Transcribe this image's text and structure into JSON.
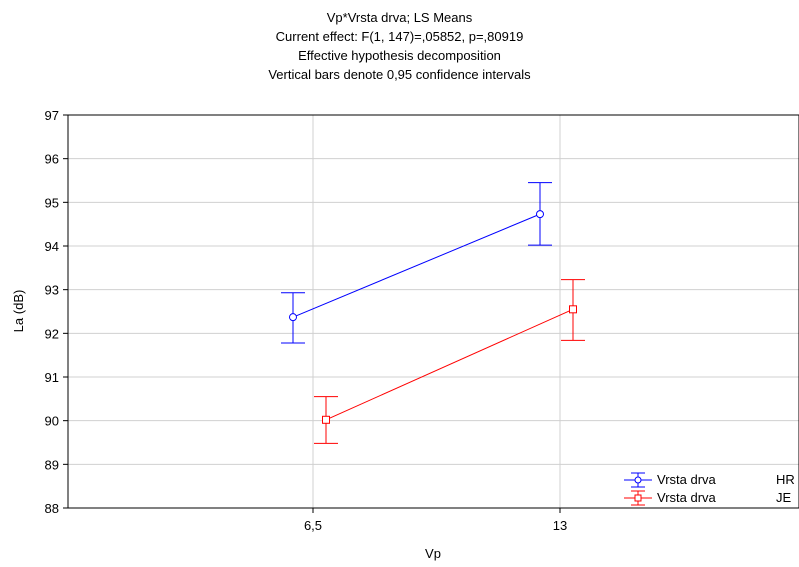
{
  "chart_data": {
    "type": "line",
    "title": "Vp*Vrsta drva; LS Means",
    "subtitle_lines": [
      "Current effect: F(1, 147)=,05852, p=,80919",
      "Effective hypothesis decomposition",
      "Vertical bars denote 0,95 confidence intervals"
    ],
    "xlabel": "Vp",
    "ylabel": "La (dB)",
    "categories": [
      "6,5",
      "13"
    ],
    "ylim": [
      88,
      97
    ],
    "yticks": [
      "88",
      "89",
      "90",
      "91",
      "92",
      "93",
      "94",
      "95",
      "96",
      "97"
    ],
    "grid": true,
    "legend_position": "bottom-right",
    "series": [
      {
        "name": "Vrsta drva",
        "level": "HR",
        "color": "#0000ff",
        "marker": "circle",
        "values": [
          92.37,
          94.73
        ],
        "ci_lower": [
          91.78,
          94.02
        ],
        "ci_upper": [
          92.93,
          95.45
        ]
      },
      {
        "name": "Vrsta drva",
        "level": "JE",
        "color": "#ff0000",
        "marker": "square",
        "values": [
          90.02,
          92.55
        ],
        "ci_lower": [
          89.48,
          91.84
        ],
        "ci_upper": [
          90.55,
          93.23
        ]
      }
    ]
  }
}
